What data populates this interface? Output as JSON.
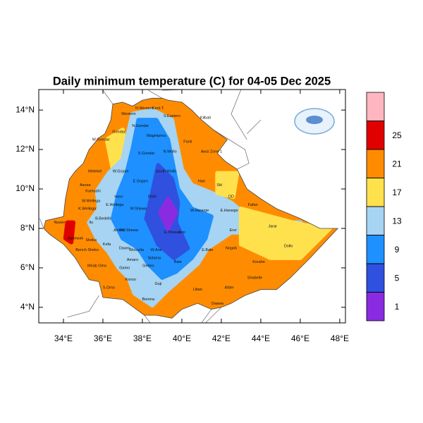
{
  "map": {
    "title": "Daily minimum temperature (C) for 04-05 Dec 2025",
    "xlim": [
      32.75,
      48.29
    ],
    "ylim": [
      3.21,
      15.04
    ],
    "xticks": [
      {
        "value": 34,
        "label": "34°E"
      },
      {
        "value": 36,
        "label": "36°E"
      },
      {
        "value": 38,
        "label": "38°E"
      },
      {
        "value": 40,
        "label": "40°E"
      },
      {
        "value": 42,
        "label": "42°E"
      },
      {
        "value": 44,
        "label": "44°E"
      },
      {
        "value": 46,
        "label": "46°E"
      },
      {
        "value": 48,
        "label": "48°E"
      }
    ],
    "yticks": [
      {
        "value": 4,
        "label": "4°N"
      },
      {
        "value": 6,
        "label": "6°N"
      },
      {
        "value": 8,
        "label": "8°N"
      },
      {
        "value": 10,
        "label": "10°N"
      },
      {
        "value": 12,
        "label": "12°N"
      },
      {
        "value": 14,
        "label": "14°N"
      }
    ],
    "levels": [
      1,
      5,
      9,
      13,
      17,
      21,
      25
    ],
    "colors": [
      "#8a2be2",
      "#3050e0",
      "#1e90ff",
      "#a6d4f2",
      "#ffe14d",
      "#ff8c00",
      "#e00000",
      "#ffb6c1"
    ],
    "zones": [
      "Western",
      "N.Western",
      "Cent.T.",
      "S.Eastern",
      "Kilbati",
      "N.Gondar",
      "W.Gondar",
      "Gondar",
      "WagHamra",
      "S.Gondar",
      "Awsi Zone 1",
      "Fanti",
      "N.Wollo",
      "Metekel",
      "W.Gojam",
      "South Wollo",
      "E.Gojam",
      "Hari",
      "Siti",
      "Asosa",
      "Kamashi",
      "Horo",
      "NSH",
      "DD",
      "Fafan",
      "W.Wellega",
      "K.Wellega",
      "E.Wellega",
      "W.Shewa",
      "E.Hararge",
      "W.Hararge",
      "Jarar",
      "Erer",
      "B.Bedelli",
      "Ilu",
      "Jimma",
      "Nuwer",
      "Agnewak",
      "Sheka",
      "Kefa",
      "Bench Sheko",
      "Mirab Omo",
      "Dawro",
      "Wolayita",
      "Arsi",
      "W.Arsi",
      "Bale",
      "E.Bale",
      "Nogob",
      "Korahe",
      "Dollo",
      "Shabelle",
      "Afder",
      "Liban",
      "Daawa",
      "Borena",
      "Guji",
      "Gedeo",
      "Sidama",
      "Gamo",
      "S.Omo",
      "Konso",
      "Amaro",
      "SW.Shewa",
      "E.Shewa"
    ]
  }
}
